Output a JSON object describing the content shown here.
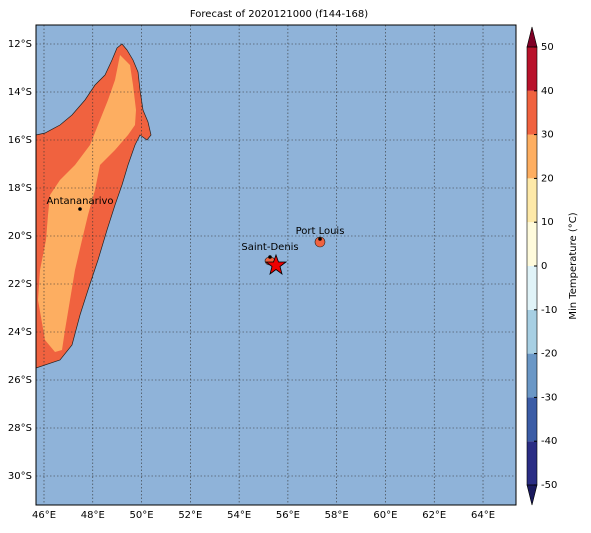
{
  "title": "Forecast of 2020121000 (f144-168)",
  "map": {
    "lon_ticks": [
      {
        "value": 46,
        "label": "46°E"
      },
      {
        "value": 48,
        "label": "48°E"
      },
      {
        "value": 50,
        "label": "50°E"
      },
      {
        "value": 52,
        "label": "52°E"
      },
      {
        "value": 54,
        "label": "54°E"
      },
      {
        "value": 56,
        "label": "56°E"
      },
      {
        "value": 58,
        "label": "58°E"
      },
      {
        "value": 60,
        "label": "60°E"
      },
      {
        "value": 62,
        "label": "62°E"
      },
      {
        "value": 64,
        "label": "64°E"
      }
    ],
    "lat_ticks": [
      {
        "value": -12,
        "label": "12°S"
      },
      {
        "value": -14,
        "label": "14°S"
      },
      {
        "value": -16,
        "label": "16°S"
      },
      {
        "value": -18,
        "label": "18°S"
      },
      {
        "value": -20,
        "label": "20°S"
      },
      {
        "value": -22,
        "label": "22°S"
      },
      {
        "value": -24,
        "label": "24°S"
      },
      {
        "value": -26,
        "label": "26°S"
      },
      {
        "value": -28,
        "label": "28°S"
      },
      {
        "value": -30,
        "label": "30°S"
      }
    ],
    "cities": [
      "Antananarivo",
      "Saint-Denis",
      "Port Louis"
    ]
  },
  "colorbar": {
    "label": "Min Temperature (°C)",
    "lim": [
      -50,
      50
    ],
    "ticks": [
      -50,
      -40,
      -30,
      -20,
      -10,
      0,
      10,
      20,
      30,
      40,
      50
    ],
    "colors": [
      "#2a2d84",
      "#3b5ca6",
      "#6a97c6",
      "#a7cfe3",
      "#e0f3f8",
      "#fffbdc",
      "#fee9a8",
      "#fdae61",
      "#f0623f",
      "#b8122b"
    ],
    "extend_colors": [
      "#1a1a5e",
      "#7f0026"
    ]
  }
}
